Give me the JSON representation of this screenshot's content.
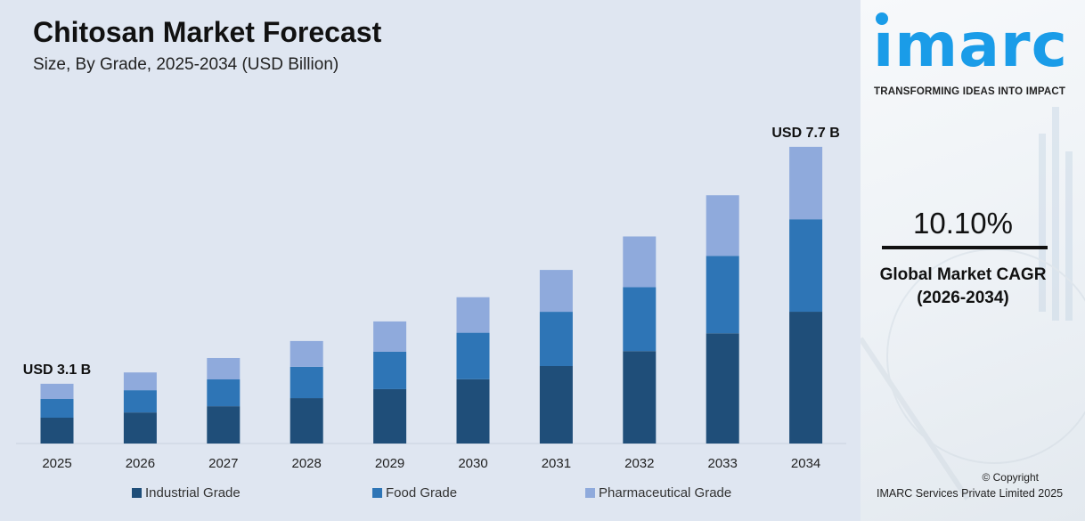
{
  "chart_data": {
    "type": "bar",
    "stacked": true,
    "title": "Chitosan Market Forecast",
    "subtitle": "Size, By Grade, 2025-2034 (USD Billion)",
    "categories": [
      "2025",
      "2026",
      "2027",
      "2028",
      "2029",
      "2030",
      "2031",
      "2032",
      "2033",
      "2034"
    ],
    "series": [
      {
        "name": "Industrial Grade",
        "color": "#1f4e79",
        "values": [
          1.34,
          1.45,
          1.57,
          1.74,
          1.92,
          2.1,
          2.37,
          2.66,
          3.0,
          3.42
        ]
      },
      {
        "name": "Food Grade",
        "color": "#2e75b6",
        "values": [
          0.97,
          1.04,
          1.13,
          1.2,
          1.32,
          1.52,
          1.66,
          1.84,
          2.11,
          2.4
        ]
      },
      {
        "name": "Pharmaceutical Grade",
        "color": "#8faadc",
        "values": [
          0.79,
          0.83,
          0.9,
          0.99,
          1.07,
          1.16,
          1.28,
          1.46,
          1.65,
          1.88
        ]
      }
    ],
    "annotations": [
      {
        "category": "2025",
        "text": "USD 3.1 B"
      },
      {
        "category": "2034",
        "text": "USD 7.7 B"
      }
    ],
    "legend_position": "bottom",
    "grid": false
  },
  "side": {
    "logo_text": "imarc",
    "tagline": "TRANSFORMING IDEAS INTO IMPACT",
    "cagr_value": "10.10%",
    "cagr_label_line1": "Global Market CAGR",
    "cagr_label_line2": "(2026-2034)",
    "copyright": "© Copyright",
    "company": "IMARC Services Private Limited 2025"
  }
}
